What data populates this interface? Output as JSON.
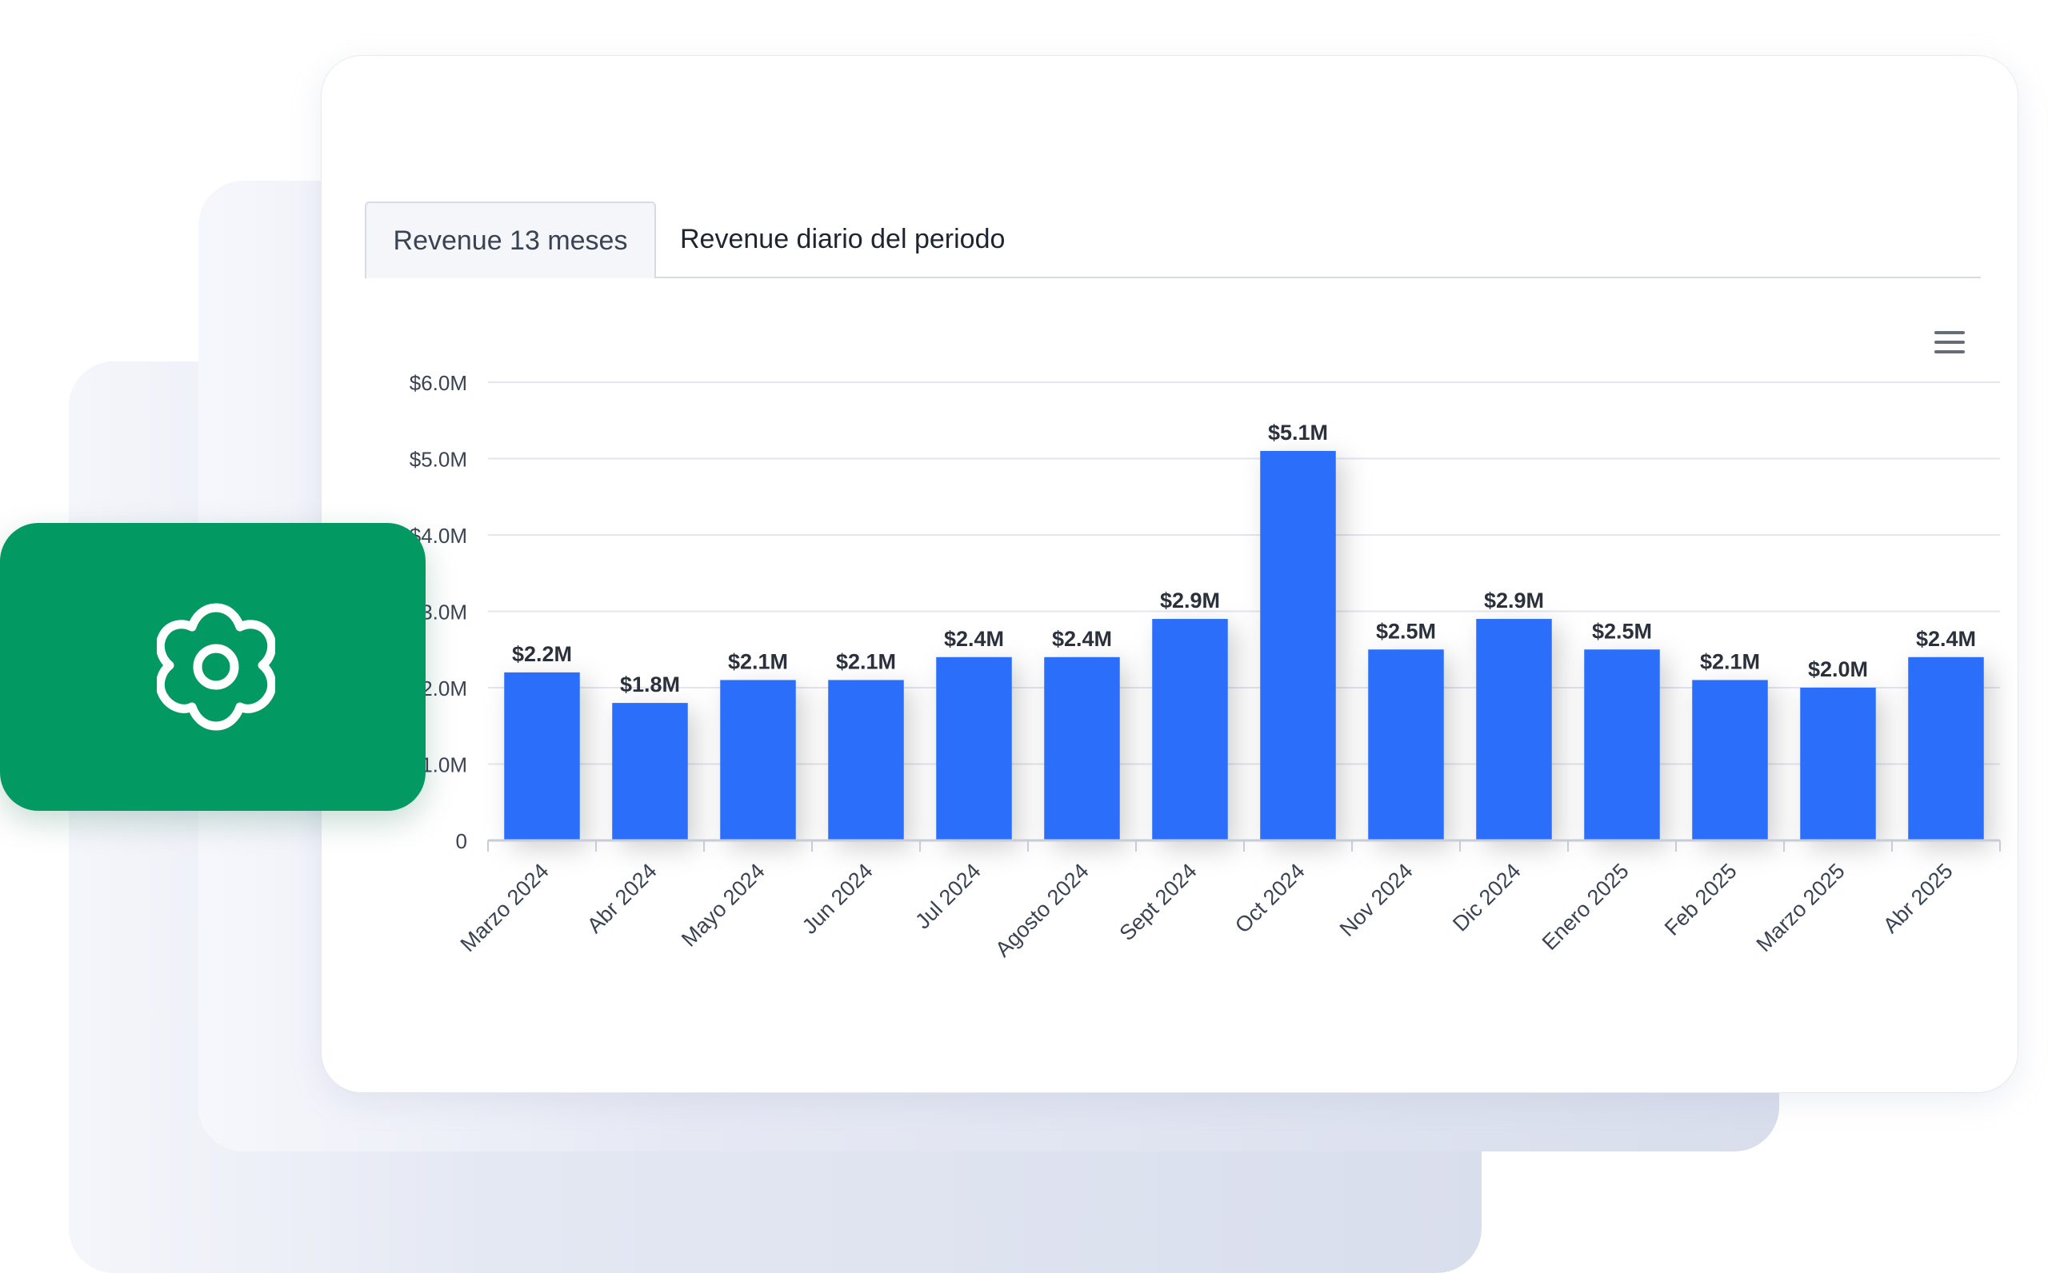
{
  "tabs": [
    {
      "label": "Revenue 13 meses",
      "active": true
    },
    {
      "label": "Revenue diario del periodo",
      "active": false
    }
  ],
  "icons": {
    "badge": "gear-icon",
    "chart_menu": "hamburger-menu-icon"
  },
  "colors": {
    "bar": "#2b6ef9",
    "badge_background": "#029a62",
    "axis_text": "#3a4354",
    "data_label": "#2a313c"
  },
  "chart_data": {
    "type": "bar",
    "title": "",
    "xlabel": "",
    "ylabel": "",
    "categories": [
      "Marzo 2024",
      "Abr 2024",
      "Mayo 2024",
      "Jun 2024",
      "Jul 2024",
      "Agosto 2024",
      "Sept 2024",
      "Oct 2024",
      "Nov 2024",
      "Dic 2024",
      "Enero 2025",
      "Feb 2025",
      "Marzo 2025",
      "Abr 2025"
    ],
    "values": [
      2.2,
      1.8,
      2.1,
      2.1,
      2.4,
      2.4,
      2.9,
      5.1,
      2.5,
      2.9,
      2.5,
      2.1,
      2.0,
      2.4
    ],
    "data_labels": [
      "$2.2M",
      "$1.8M",
      "$2.1M",
      "$2.1M",
      "$2.4M",
      "$2.4M",
      "$2.9M",
      "$5.1M",
      "$2.5M",
      "$2.9M",
      "$2.5M",
      "$2.1M",
      "$2.0M",
      "$2.4M"
    ],
    "y_ticks": [
      0,
      1,
      2,
      3,
      4,
      5,
      6
    ],
    "y_tick_labels": [
      "0",
      "$1.0M",
      "$2.0M",
      "$3.0M",
      "$4.0M",
      "$5.0M",
      "$6.0M"
    ],
    "ylim": [
      0,
      6
    ],
    "grid": true,
    "legend": "none"
  }
}
